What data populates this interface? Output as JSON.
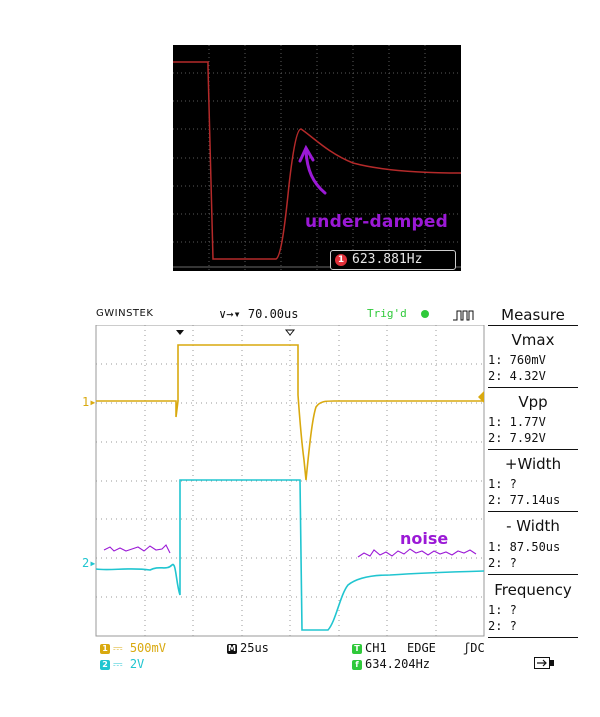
{
  "top_capture": {
    "annotation": "under-damped",
    "freq_icon": "1",
    "frequency": "623.881Hz",
    "colors": {
      "trace": "#b52a2a",
      "grid": "#555555",
      "annotation": "#9b19d6"
    }
  },
  "scope": {
    "brand": "GWINSTEK",
    "timebase_offset": "70.00us",
    "trigger_status": "Trig'd",
    "measure": {
      "title": "Measure",
      "items": [
        {
          "name": "Vmax",
          "ch1": "1: 760mV",
          "ch2": "2: 4.32V"
        },
        {
          "name": "Vpp",
          "ch1": "1: 1.77V",
          "ch2": "2: 7.92V"
        },
        {
          "name": "+Width",
          "ch1": "1:    ?",
          "ch2": "2: 77.14us"
        },
        {
          "name": "- Width",
          "ch1": "1: 87.50us",
          "ch2": "2:    ?"
        },
        {
          "name": "Frequency",
          "ch1": "1:    ?",
          "ch2": "2:    ?"
        }
      ]
    },
    "ch1_marker": "1",
    "ch2_marker": "2",
    "noise_label": "noise",
    "footer": {
      "ch1_scale": "500mV",
      "ch2_scale": "2V",
      "ch1_badge": "1",
      "ch2_badge": "2",
      "time_badge": "M",
      "time_div": "25us",
      "trig_src_badge": "T",
      "trig_source": "CH1",
      "trig_type": "EDGE",
      "coupling": "DC",
      "freq_badge": "f",
      "frequency": "634.204Hz"
    },
    "colors": {
      "ch1": "#d9a90f",
      "ch2": "#20c5d0",
      "trigger": "#2fc93a",
      "noise": "#9b19d6"
    }
  }
}
